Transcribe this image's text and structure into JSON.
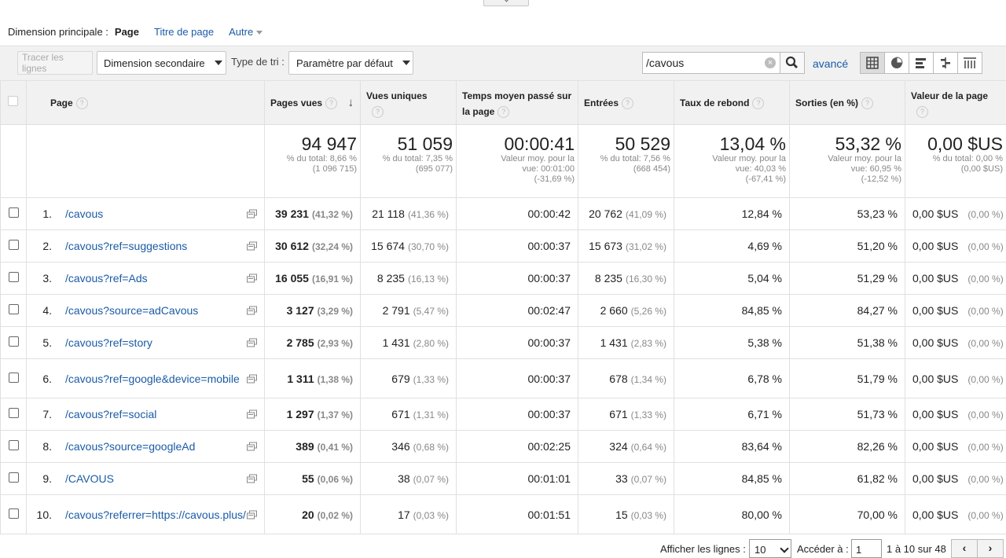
{
  "dimension": {
    "label": "Dimension principale :",
    "current": "Page",
    "title_link": "Titre de page",
    "other_link": "Autre"
  },
  "toolbar": {
    "plot_rows": "Tracer les lignes",
    "secondary_dimension": "Dimension secondaire",
    "sort_label": "Type de tri :",
    "sort_value": "Paramètre par défaut",
    "search_value": "/cavous",
    "advanced": "avancé"
  },
  "columns": {
    "page": "Page",
    "pageviews": "Pages vues",
    "unique": "Vues uniques",
    "avgtime": "Temps moyen passé sur la page",
    "entrances": "Entrées",
    "bounce": "Taux de rebond",
    "exit": "Sorties (en %)",
    "value": "Valeur de la page"
  },
  "totals": {
    "pageviews": {
      "big": "94 947",
      "line1": "% du total: 8,66 %",
      "line2": "(1 096 715)"
    },
    "unique": {
      "big": "51 059",
      "line1": "% du total: 7,35 %",
      "line2": "(695 077)"
    },
    "avgtime": {
      "big": "00:00:41",
      "line1": "Valeur moy. pour la",
      "line2": "vue: 00:01:00",
      "line3": "(-31,69 %)"
    },
    "entrances": {
      "big": "50 529",
      "line1": "% du total: 7,56 %",
      "line2": "(668 454)"
    },
    "bounce": {
      "big": "13,04 %",
      "line1": "Valeur moy. pour la",
      "line2": "vue: 40,03 %",
      "line3": "(-67,41 %)"
    },
    "exit": {
      "big": "53,32 %",
      "line1": "Valeur moy. pour la",
      "line2": "vue: 60,95 %",
      "line3": "(-12,52 %)"
    },
    "value": {
      "big": "0,00 $US",
      "line1": "% du total: 0,00 %",
      "line2": "(0,00 $US)"
    }
  },
  "rows": [
    {
      "n": "1.",
      "page": "/cavous",
      "pv": "39 231",
      "pvp": "(41,32 %)",
      "uv": "21 118",
      "uvp": "(41,36 %)",
      "t": "00:00:42",
      "e": "20 762",
      "ep": "(41,09 %)",
      "b": "12,84 %",
      "x": "53,23 %",
      "val": "0,00 $US",
      "valp": "(0,00 %)"
    },
    {
      "n": "2.",
      "page": "/cavous?ref=suggestions",
      "pv": "30 612",
      "pvp": "(32,24 %)",
      "uv": "15 674",
      "uvp": "(30,70 %)",
      "t": "00:00:37",
      "e": "15 673",
      "ep": "(31,02 %)",
      "b": "4,69 %",
      "x": "51,20 %",
      "val": "0,00 $US",
      "valp": "(0,00 %)"
    },
    {
      "n": "3.",
      "page": "/cavous?ref=Ads",
      "pv": "16 055",
      "pvp": "(16,91 %)",
      "uv": "8 235",
      "uvp": "(16,13 %)",
      "t": "00:00:37",
      "e": "8 235",
      "ep": "(16,30 %)",
      "b": "5,04 %",
      "x": "51,29 %",
      "val": "0,00 $US",
      "valp": "(0,00 %)"
    },
    {
      "n": "4.",
      "page": "/cavous?source=adCavous",
      "pv": "3 127",
      "pvp": "(3,29 %)",
      "uv": "2 791",
      "uvp": "(5,47 %)",
      "t": "00:02:47",
      "e": "2 660",
      "ep": "(5,26 %)",
      "b": "84,85 %",
      "x": "84,27 %",
      "val": "0,00 $US",
      "valp": "(0,00 %)"
    },
    {
      "n": "5.",
      "page": "/cavous?ref=story",
      "pv": "2 785",
      "pvp": "(2,93 %)",
      "uv": "1 431",
      "uvp": "(2,80 %)",
      "t": "00:00:37",
      "e": "1 431",
      "ep": "(2,83 %)",
      "b": "5,38 %",
      "x": "51,38 %",
      "val": "0,00 $US",
      "valp": "(0,00 %)"
    },
    {
      "n": "6.",
      "page": "/cavous?ref=google&device=mobile",
      "pv": "1 311",
      "pvp": "(1,38 %)",
      "uv": "679",
      "uvp": "(1,33 %)",
      "t": "00:00:37",
      "e": "678",
      "ep": "(1,34 %)",
      "b": "6,78 %",
      "x": "51,79 %",
      "val": "0,00 $US",
      "valp": "(0,00 %)"
    },
    {
      "n": "7.",
      "page": "/cavous?ref=social",
      "pv": "1 297",
      "pvp": "(1,37 %)",
      "uv": "671",
      "uvp": "(1,31 %)",
      "t": "00:00:37",
      "e": "671",
      "ep": "(1,33 %)",
      "b": "6,71 %",
      "x": "51,73 %",
      "val": "0,00 $US",
      "valp": "(0,00 %)"
    },
    {
      "n": "8.",
      "page": "/cavous?source=googleAd",
      "pv": "389",
      "pvp": "(0,41 %)",
      "uv": "346",
      "uvp": "(0,68 %)",
      "t": "00:02:25",
      "e": "324",
      "ep": "(0,64 %)",
      "b": "83,64 %",
      "x": "82,26 %",
      "val": "0,00 $US",
      "valp": "(0,00 %)"
    },
    {
      "n": "9.",
      "page": "/CAVOUS",
      "pv": "55",
      "pvp": "(0,06 %)",
      "uv": "38",
      "uvp": "(0,07 %)",
      "t": "00:01:01",
      "e": "33",
      "ep": "(0,07 %)",
      "b": "84,85 %",
      "x": "61,82 %",
      "val": "0,00 $US",
      "valp": "(0,00 %)"
    },
    {
      "n": "10.",
      "page": "/cavous?referrer=https://cavous.plus/",
      "pv": "20",
      "pvp": "(0,02 %)",
      "uv": "17",
      "uvp": "(0,03 %)",
      "t": "00:01:51",
      "e": "15",
      "ep": "(0,03 %)",
      "b": "80,00 %",
      "x": "70,00 %",
      "val": "0,00 $US",
      "valp": "(0,00 %)"
    }
  ],
  "pagination": {
    "show_rows": "Afficher les lignes :",
    "rows_value": "10",
    "go_to": "Accéder à :",
    "page_value": "1",
    "range": "1 à 10 sur 48",
    "prev": "‹",
    "next": "›"
  }
}
